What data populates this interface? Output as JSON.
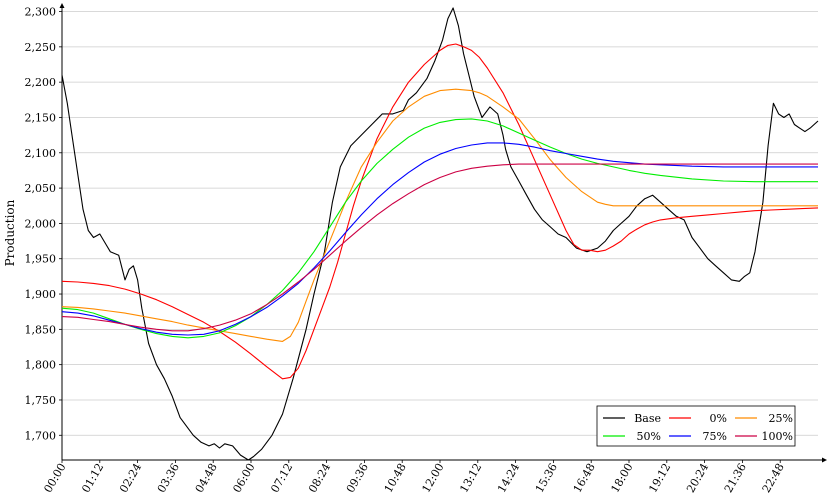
{
  "chart_data": {
    "type": "line",
    "title": "",
    "xlabel": "",
    "ylabel": "Production",
    "x_axis_type": "time",
    "xlim": [
      "00:00",
      "24:00"
    ],
    "ylim": [
      1665,
      2305
    ],
    "x_ticks": [
      "00:00",
      "01:12",
      "02:24",
      "03:36",
      "04:48",
      "06:00",
      "07:12",
      "08:24",
      "09:36",
      "10:48",
      "12:00",
      "13:12",
      "14:24",
      "15:36",
      "16:48",
      "18:00",
      "19:12",
      "20:24",
      "21:36",
      "22:48"
    ],
    "y_ticks": [
      1700,
      1750,
      1800,
      1850,
      1900,
      1950,
      2000,
      2050,
      2100,
      2150,
      2200,
      2250,
      2300
    ],
    "y_tick_labels": [
      "1,700",
      "1,750",
      "1,800",
      "1,850",
      "1,900",
      "1,950",
      "2,000",
      "2,050",
      "2,100",
      "2,150",
      "2,200",
      "2,250",
      "2,300"
    ],
    "grid": "horizontal",
    "legend_position": "bottom-right",
    "series": [
      {
        "name": "Base",
        "color": "#000000",
        "x": [
          "00:00",
          "00:10",
          "00:20",
          "00:40",
          "00:50",
          "01:00",
          "01:12",
          "01:24",
          "01:32",
          "01:48",
          "02:00",
          "02:08",
          "02:16",
          "02:24",
          "02:32",
          "02:45",
          "03:00",
          "03:15",
          "03:30",
          "03:45",
          "04:00",
          "04:10",
          "04:25",
          "04:40",
          "04:50",
          "05:00",
          "05:10",
          "05:25",
          "05:40",
          "05:55",
          "06:05",
          "06:20",
          "06:40",
          "07:00",
          "07:20",
          "07:45",
          "08:00",
          "08:20",
          "08:35",
          "08:50",
          "09:10",
          "09:30",
          "09:50",
          "10:10",
          "10:30",
          "10:50",
          "11:00",
          "11:15",
          "11:35",
          "11:50",
          "12:05",
          "12:15",
          "12:25",
          "12:35",
          "12:45",
          "12:55",
          "13:05",
          "13:20",
          "13:35",
          "13:50",
          "14:00",
          "14:05",
          "14:15",
          "14:30",
          "14:45",
          "15:00",
          "15:15",
          "15:30",
          "15:45",
          "16:00",
          "16:20",
          "16:40",
          "17:00",
          "17:15",
          "17:30",
          "17:45",
          "18:00",
          "18:15",
          "18:30",
          "18:45",
          "19:00",
          "19:15",
          "19:30",
          "19:45",
          "20:00",
          "20:15",
          "20:30",
          "20:45",
          "21:00",
          "21:15",
          "21:30",
          "21:40",
          "21:50",
          "22:00",
          "22:15",
          "22:25",
          "22:35",
          "22:45",
          "22:55",
          "23:05",
          "23:15",
          "23:25",
          "23:35",
          "23:45",
          "24:00"
        ],
        "values": [
          2210,
          2170,
          2120,
          2020,
          1990,
          1980,
          1985,
          1970,
          1960,
          1955,
          1920,
          1935,
          1940,
          1920,
          1880,
          1830,
          1800,
          1780,
          1755,
          1725,
          1710,
          1700,
          1690,
          1685,
          1688,
          1682,
          1688,
          1685,
          1672,
          1665,
          1670,
          1680,
          1700,
          1730,
          1780,
          1850,
          1900,
          1960,
          2030,
          2080,
          2110,
          2125,
          2140,
          2155,
          2155,
          2160,
          2175,
          2185,
          2205,
          2230,
          2260,
          2290,
          2305,
          2280,
          2240,
          2210,
          2180,
          2150,
          2165,
          2155,
          2125,
          2105,
          2080,
          2060,
          2040,
          2020,
          2005,
          1995,
          1985,
          1980,
          1965,
          1960,
          1965,
          1975,
          1990,
          2000,
          2010,
          2025,
          2035,
          2040,
          2030,
          2020,
          2010,
          2005,
          1980,
          1965,
          1950,
          1940,
          1930,
          1920,
          1918,
          1925,
          1930,
          1960,
          2030,
          2110,
          2170,
          2155,
          2150,
          2155,
          2140,
          2135,
          2130,
          2135,
          2145
        ]
      },
      {
        "name": "0%",
        "color": "#ff0000",
        "x": [
          "00:00",
          "00:30",
          "01:00",
          "01:30",
          "02:00",
          "02:30",
          "03:00",
          "03:30",
          "04:00",
          "04:30",
          "05:00",
          "05:30",
          "06:00",
          "06:30",
          "07:00",
          "07:15",
          "07:30",
          "07:45",
          "08:00",
          "08:15",
          "08:30",
          "08:45",
          "09:00",
          "09:15",
          "09:30",
          "09:45",
          "10:00",
          "10:30",
          "11:00",
          "11:30",
          "12:00",
          "12:15",
          "12:30",
          "12:45",
          "13:00",
          "13:15",
          "13:30",
          "14:00",
          "14:30",
          "15:00",
          "15:30",
          "16:00",
          "16:15",
          "16:30",
          "16:45",
          "17:00",
          "17:15",
          "17:30",
          "17:45",
          "18:00",
          "18:15",
          "18:30",
          "18:45",
          "19:00",
          "19:30",
          "20:00",
          "20:30",
          "21:00",
          "21:30",
          "22:00",
          "22:30",
          "23:00",
          "23:30",
          "24:00"
        ],
        "values": [
          1918,
          1917,
          1915,
          1912,
          1907,
          1900,
          1892,
          1882,
          1871,
          1860,
          1847,
          1832,
          1815,
          1797,
          1780,
          1782,
          1795,
          1820,
          1850,
          1880,
          1910,
          1945,
          1985,
          2025,
          2060,
          2090,
          2120,
          2165,
          2200,
          2225,
          2245,
          2252,
          2254,
          2250,
          2245,
          2235,
          2220,
          2185,
          2140,
          2090,
          2040,
          1990,
          1970,
          1962,
          1962,
          1960,
          1962,
          1968,
          1975,
          1985,
          1992,
          1998,
          2002,
          2005,
          2008,
          2010,
          2012,
          2014,
          2016,
          2018,
          2019,
          2020,
          2021,
          2022
        ]
      },
      {
        "name": "25%",
        "color": "#ff8c00",
        "x": [
          "00:00",
          "00:30",
          "01:00",
          "01:30",
          "02:00",
          "02:30",
          "03:00",
          "03:30",
          "04:00",
          "04:30",
          "05:00",
          "05:30",
          "06:00",
          "06:30",
          "07:00",
          "07:15",
          "07:30",
          "07:45",
          "08:00",
          "08:30",
          "09:00",
          "09:30",
          "10:00",
          "10:30",
          "11:00",
          "11:30",
          "12:00",
          "12:30",
          "13:00",
          "13:15",
          "13:30",
          "14:00",
          "14:30",
          "15:00",
          "15:30",
          "16:00",
          "16:30",
          "17:00",
          "17:15",
          "17:30",
          "17:45",
          "18:00",
          "18:30",
          "19:00",
          "20:00",
          "21:00",
          "22:00",
          "23:00",
          "24:00"
        ],
        "values": [
          1882,
          1881,
          1879,
          1876,
          1873,
          1869,
          1865,
          1861,
          1856,
          1852,
          1848,
          1844,
          1840,
          1836,
          1833,
          1840,
          1860,
          1890,
          1920,
          1975,
          2030,
          2080,
          2115,
          2145,
          2165,
          2180,
          2188,
          2190,
          2188,
          2185,
          2180,
          2165,
          2148,
          2120,
          2090,
          2065,
          2045,
          2030,
          2027,
          2025,
          2025,
          2025,
          2025,
          2025,
          2025,
          2025,
          2025,
          2025,
          2025
        ]
      },
      {
        "name": "50%",
        "color": "#00ee00",
        "x": [
          "00:00",
          "00:30",
          "01:00",
          "01:30",
          "02:00",
          "02:30",
          "03:00",
          "03:30",
          "04:00",
          "04:30",
          "05:00",
          "05:30",
          "06:00",
          "06:30",
          "07:00",
          "07:30",
          "08:00",
          "08:30",
          "09:00",
          "09:30",
          "10:00",
          "10:30",
          "11:00",
          "11:30",
          "12:00",
          "12:30",
          "13:00",
          "13:30",
          "14:00",
          "14:30",
          "15:00",
          "15:30",
          "16:00",
          "16:30",
          "17:00",
          "17:30",
          "18:00",
          "18:30",
          "19:00",
          "20:00",
          "21:00",
          "22:00",
          "23:00",
          "24:00"
        ],
        "values": [
          1880,
          1878,
          1873,
          1865,
          1857,
          1850,
          1844,
          1840,
          1838,
          1840,
          1845,
          1855,
          1868,
          1885,
          1905,
          1930,
          1960,
          1995,
          2030,
          2060,
          2085,
          2105,
          2122,
          2135,
          2143,
          2147,
          2148,
          2145,
          2138,
          2128,
          2118,
          2108,
          2099,
          2091,
          2085,
          2080,
          2075,
          2071,
          2068,
          2063,
          2060,
          2059,
          2059,
          2059
        ]
      },
      {
        "name": "75%",
        "color": "#0000ff",
        "x": [
          "00:00",
          "00:30",
          "01:00",
          "01:30",
          "02:00",
          "02:30",
          "03:00",
          "03:30",
          "04:00",
          "04:30",
          "05:00",
          "05:30",
          "06:00",
          "06:30",
          "07:00",
          "07:30",
          "08:00",
          "08:30",
          "09:00",
          "09:30",
          "10:00",
          "10:30",
          "11:00",
          "11:30",
          "12:00",
          "12:30",
          "13:00",
          "13:30",
          "14:00",
          "14:30",
          "15:00",
          "15:30",
          "16:00",
          "16:30",
          "17:00",
          "17:30",
          "18:00",
          "18:30",
          "19:00",
          "20:00",
          "21:00",
          "22:00",
          "23:00",
          "24:00"
        ],
        "values": [
          1875,
          1873,
          1869,
          1863,
          1857,
          1851,
          1846,
          1843,
          1842,
          1843,
          1848,
          1857,
          1868,
          1881,
          1897,
          1915,
          1937,
          1961,
          1987,
          2012,
          2035,
          2055,
          2072,
          2087,
          2098,
          2106,
          2111,
          2114,
          2114,
          2112,
          2108,
          2103,
          2099,
          2095,
          2091,
          2088,
          2086,
          2084,
          2083,
          2081,
          2080,
          2080,
          2080,
          2080
        ]
      },
      {
        "name": "100%",
        "color": "#cc0044",
        "x": [
          "00:00",
          "00:30",
          "01:00",
          "01:30",
          "02:00",
          "02:30",
          "03:00",
          "03:30",
          "04:00",
          "04:30",
          "05:00",
          "05:30",
          "06:00",
          "06:30",
          "07:00",
          "07:30",
          "08:00",
          "08:30",
          "09:00",
          "09:30",
          "10:00",
          "10:30",
          "11:00",
          "11:30",
          "12:00",
          "12:30",
          "13:00",
          "13:30",
          "14:00",
          "14:30",
          "15:00",
          "15:30",
          "16:00",
          "17:00",
          "18:00",
          "19:00",
          "20:00",
          "21:00",
          "22:00",
          "23:00",
          "24:00"
        ],
        "values": [
          1868,
          1867,
          1864,
          1861,
          1857,
          1853,
          1850,
          1848,
          1848,
          1851,
          1856,
          1863,
          1872,
          1885,
          1900,
          1917,
          1935,
          1955,
          1975,
          1994,
          2012,
          2028,
          2042,
          2055,
          2065,
          2073,
          2078,
          2081,
          2083,
          2084,
          2084,
          2084,
          2084,
          2084,
          2084,
          2084,
          2084,
          2084,
          2084,
          2084,
          2084
        ]
      }
    ]
  }
}
